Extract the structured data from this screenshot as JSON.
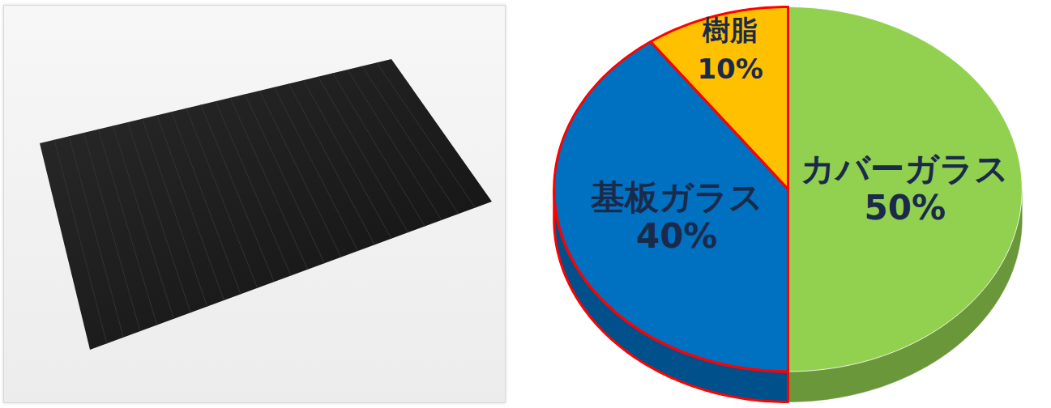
{
  "chart_data": {
    "type": "pie",
    "categories": [
      "カバーガラス",
      "基板ガラス",
      "樹脂"
    ],
    "values": [
      50,
      40,
      10
    ],
    "value_labels": [
      "50%",
      "40%",
      "10%"
    ],
    "colors": [
      "#92D050",
      "#0070C0",
      "#FFC000"
    ],
    "data_labels": true
  }
}
